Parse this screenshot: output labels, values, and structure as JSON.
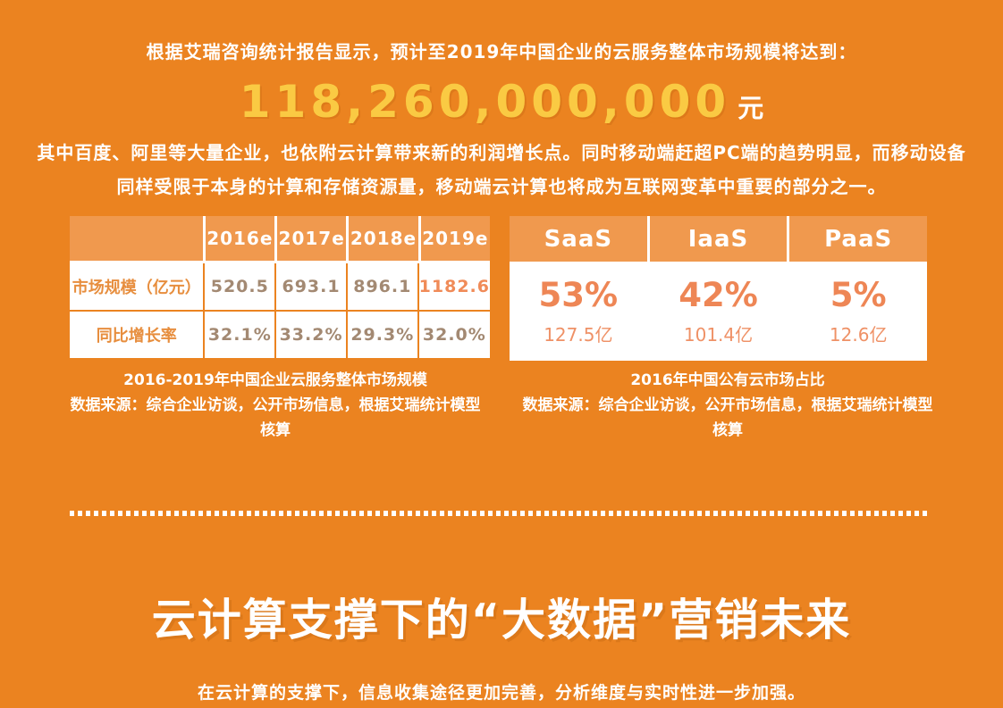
{
  "colors": {
    "background": "#EB8320",
    "panel_header": "#F0994E",
    "big_number_yellow": "#FACA43",
    "table_value_brown": "#A38972",
    "table_label_orange": "#E78E3E",
    "highlight_orange": "#F08B58",
    "percent_orange": "#EE8655",
    "sub_value_orange": "#EF9166",
    "white": "#FFFFFF"
  },
  "intro": {
    "lead": "根据艾瑞咨询统计报告显示，预计至2019年中国企业的云服务整体市场规模将达到：",
    "big_number": "118,260,000,000",
    "big_number_unit": "元",
    "paragraph": "其中百度、阿里等大量企业，也依附云计算带来新的利润增长点。同时移动端赶超PC端的趋势明显，而移动设备\n同样受限于本身的计算和存储资源量，移动端云计算也将成为互联网变革中重要的部分之一。"
  },
  "market_table": {
    "columns": [
      "2016e",
      "2017e",
      "2018e",
      "2019e"
    ],
    "rows": [
      {
        "label": "市场规模（亿元）",
        "values": [
          "520.5",
          "693.1",
          "896.1",
          "1182.6"
        ]
      },
      {
        "label": "同比增长率",
        "values": [
          "32.1%",
          "33.2%",
          "29.3%",
          "32.0%"
        ]
      }
    ],
    "caption_title": "2016-2019年中国企业云服务整体市场规模",
    "caption_source": "数据来源：综合企业访谈，公开市场信息，根据艾瑞统计模型\n核算"
  },
  "cloud_share": {
    "cards": [
      {
        "label": "SaaS",
        "percent": "53%",
        "value": "127.5亿"
      },
      {
        "label": "IaaS",
        "percent": "42%",
        "value": "101.4亿"
      },
      {
        "label": "PaaS",
        "percent": "5%",
        "value": "12.6亿"
      }
    ],
    "caption_title": "2016年中国公有云市场占比",
    "caption_source": "数据来源：综合企业访谈，公开市场信息，根据艾瑞统计模型\n核算"
  },
  "footer": {
    "heading": "云计算支撑下的“大数据”营销未来",
    "subtext": "在云计算的支撑下，信息收集途径更加完善，分析维度与实时性进一步加强。"
  },
  "chart_data": [
    {
      "type": "table",
      "title": "2016-2019年中国企业云服务整体市场规模",
      "categories": [
        "2016e",
        "2017e",
        "2018e",
        "2019e"
      ],
      "series": [
        {
          "name": "市场规模（亿元）",
          "values": [
            520.5,
            693.1,
            896.1,
            1182.6
          ]
        },
        {
          "name": "同比增长率",
          "values": [
            "32.1%",
            "33.2%",
            "29.3%",
            "32.0%"
          ]
        }
      ],
      "source": "数据来源：综合企业访谈，公开市场信息，根据艾瑞统计模型核算",
      "headline_value": "118,260,000,000 元",
      "headline_note": "预计至2019年中国企业的云服务整体市场规模"
    },
    {
      "type": "table",
      "title": "2016年中国公有云市场占比",
      "categories": [
        "SaaS",
        "IaaS",
        "PaaS"
      ],
      "series": [
        {
          "name": "占比",
          "values": [
            "53%",
            "42%",
            "5%"
          ]
        },
        {
          "name": "市场规模",
          "values": [
            "127.5亿",
            "101.4亿",
            "12.6亿"
          ]
        }
      ],
      "source": "数据来源：综合企业访谈，公开市场信息，根据艾瑞统计模型核算"
    }
  ]
}
